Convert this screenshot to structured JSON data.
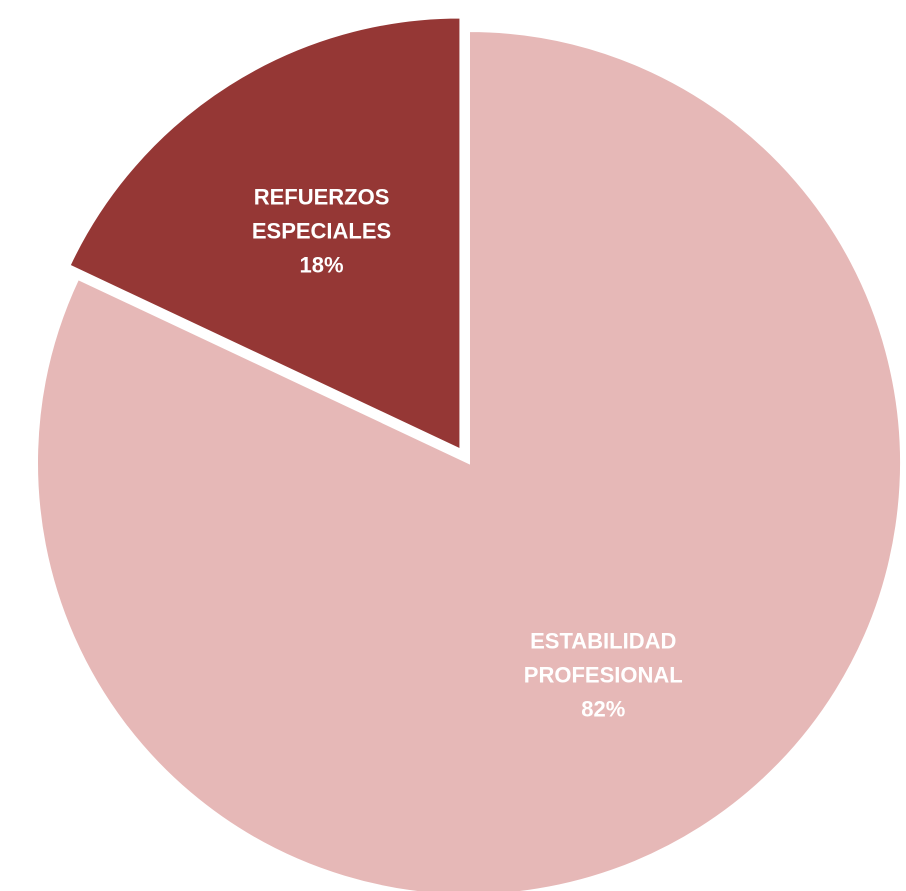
{
  "chart_data": {
    "type": "pie",
    "title": "",
    "slices": [
      {
        "label_lines": [
          "ESTABILIDAD",
          "PROFESIONAL"
        ],
        "value": 82,
        "value_label": "82%",
        "color": "#E6B8B7",
        "label_color": "#FFFFFF",
        "exploded": false
      },
      {
        "label_lines": [
          "REFUERZOS",
          "ESPECIALES"
        ],
        "value": 18,
        "value_label": "18%",
        "color": "#953735",
        "label_color": "#FFFFFF",
        "exploded": true
      }
    ],
    "start_angle": "12 o'clock",
    "direction": "clockwise",
    "legend": "none"
  }
}
